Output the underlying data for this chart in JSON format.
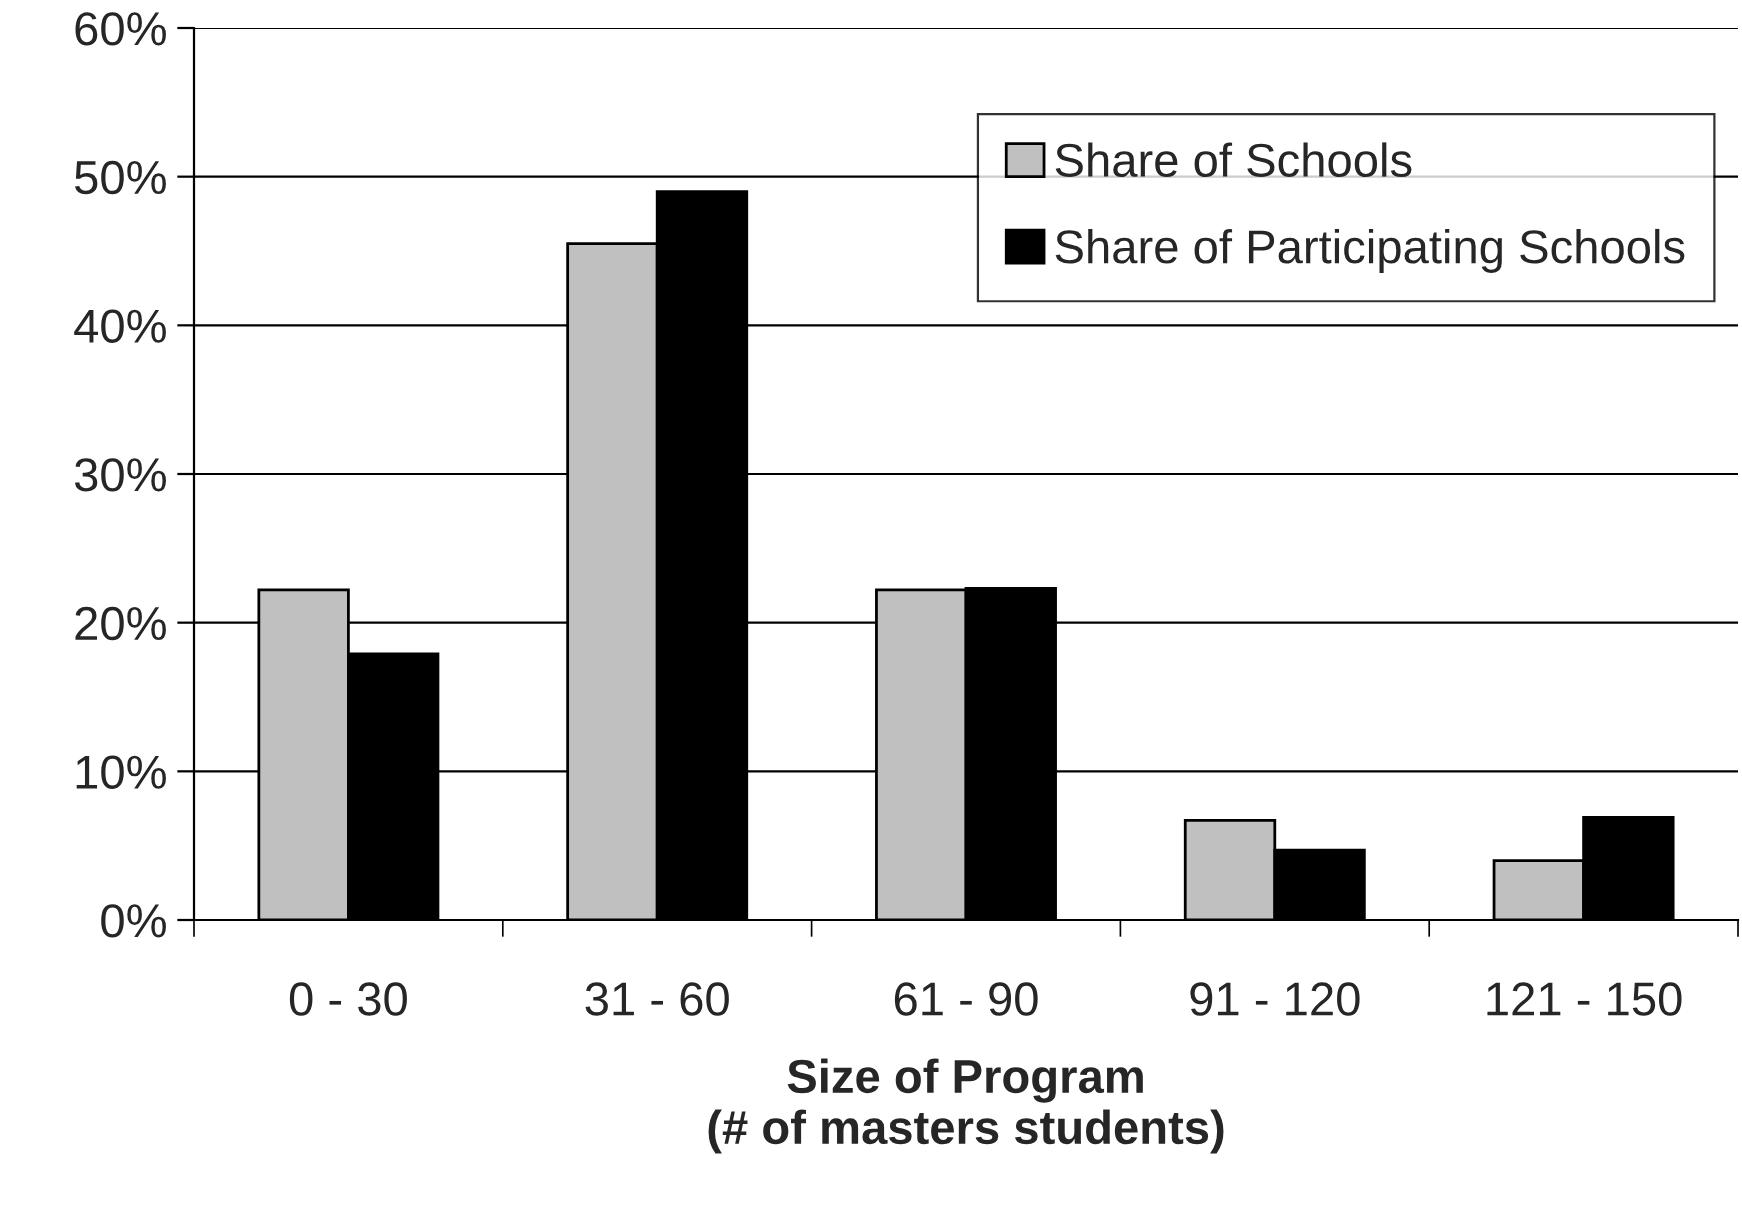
{
  "chart_data": {
    "type": "bar",
    "xlabel": "Size of Program\n(# of masters students)",
    "categories": [
      "0 - 30",
      "31 - 60",
      "61 - 90",
      "91 - 120",
      "121 - 150"
    ],
    "series": [
      {
        "name": "Share of Schools",
        "color": "#c0c0c0",
        "values": [
          22.2,
          45.5,
          22.2,
          6.7,
          4.0
        ]
      },
      {
        "name": "Share of Participating Schools",
        "color": "#000000",
        "values": [
          17.9,
          49.0,
          22.3,
          4.7,
          6.9
        ]
      }
    ],
    "ylim": [
      0,
      60
    ],
    "yticks": [
      {
        "value": 0,
        "label": "0%"
      },
      {
        "value": 10,
        "label": "10%"
      },
      {
        "value": 20,
        "label": "20%"
      },
      {
        "value": 30,
        "label": "30%"
      },
      {
        "value": 40,
        "label": "40%"
      },
      {
        "value": 50,
        "label": "50%"
      },
      {
        "value": 60,
        "label": "60%"
      }
    ],
    "grid": "y",
    "legend": "top right"
  }
}
